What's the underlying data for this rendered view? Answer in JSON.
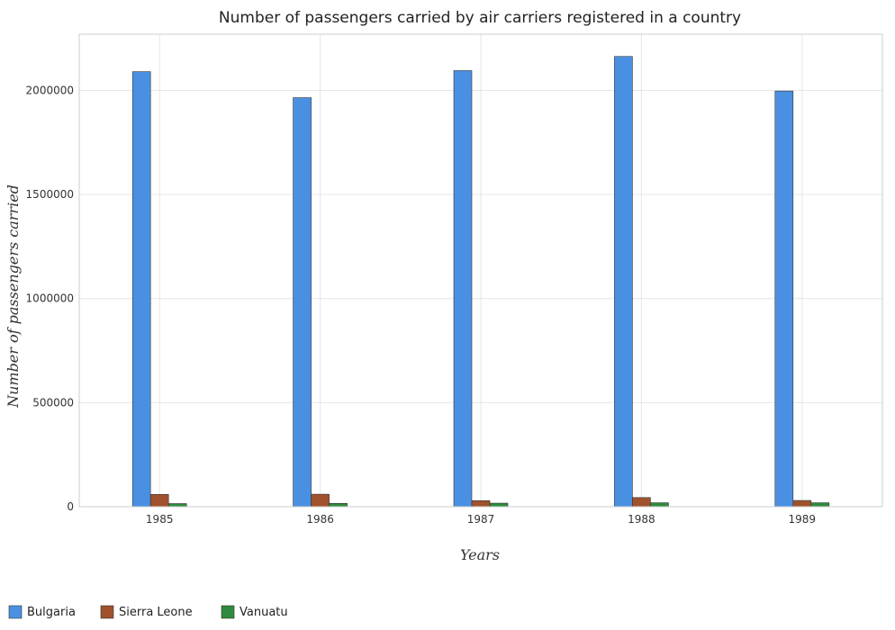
{
  "chart_data": {
    "type": "bar",
    "title": "Number of passengers carried by air carriers registered in a country",
    "xlabel": "Years",
    "ylabel": "Number of passengers carried",
    "categories": [
      "1985",
      "1986",
      "1987",
      "1988",
      "1989"
    ],
    "series": [
      {
        "name": "Bulgaria",
        "color": "#4a90e2",
        "values": [
          2090000,
          1965000,
          2095000,
          2163000,
          1997000
        ]
      },
      {
        "name": "Sierra Leone",
        "color": "#a0522d",
        "values": [
          59000,
          60000,
          29000,
          44000,
          30000
        ]
      },
      {
        "name": "Vanuatu",
        "color": "#2e8b3d",
        "values": [
          15000,
          16000,
          17000,
          19000,
          19000
        ]
      }
    ],
    "yticks": [
      0,
      500000,
      1000000,
      1500000,
      2000000
    ],
    "ytick_labels": [
      "0",
      "500000",
      "1000000",
      "1500000",
      "2000000"
    ],
    "ylim": [
      0,
      2270000
    ],
    "grid": true,
    "legend_position": "bottom-left"
  }
}
